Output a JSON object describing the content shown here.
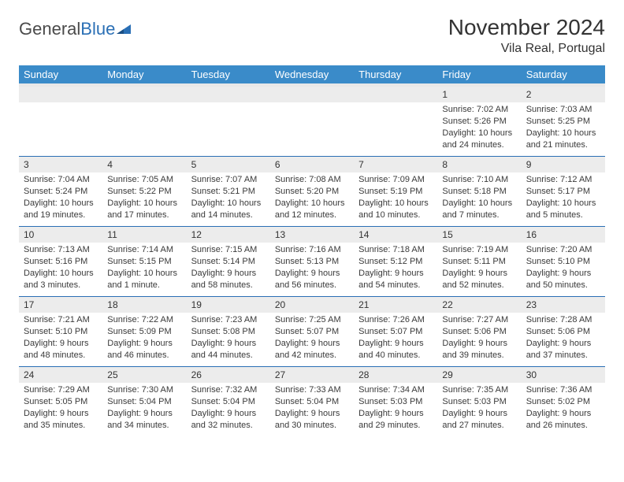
{
  "logo": {
    "word1": "General",
    "word2": "Blue"
  },
  "title": "November 2024",
  "location": "Vila Real, Portugal",
  "colors": {
    "header_bg": "#3a8bc9",
    "header_text": "#ffffff",
    "daybar_bg": "#ececec",
    "rule": "#2a6fb5",
    "logo_blue": "#2a6fb5",
    "text": "#3a3a3a"
  },
  "day_headers": [
    "Sunday",
    "Monday",
    "Tuesday",
    "Wednesday",
    "Thursday",
    "Friday",
    "Saturday"
  ],
  "weeks": [
    [
      null,
      null,
      null,
      null,
      null,
      {
        "n": "1",
        "sunrise": "7:02 AM",
        "sunset": "5:26 PM",
        "daylight": "10 hours and 24 minutes."
      },
      {
        "n": "2",
        "sunrise": "7:03 AM",
        "sunset": "5:25 PM",
        "daylight": "10 hours and 21 minutes."
      }
    ],
    [
      {
        "n": "3",
        "sunrise": "7:04 AM",
        "sunset": "5:24 PM",
        "daylight": "10 hours and 19 minutes."
      },
      {
        "n": "4",
        "sunrise": "7:05 AM",
        "sunset": "5:22 PM",
        "daylight": "10 hours and 17 minutes."
      },
      {
        "n": "5",
        "sunrise": "7:07 AM",
        "sunset": "5:21 PM",
        "daylight": "10 hours and 14 minutes."
      },
      {
        "n": "6",
        "sunrise": "7:08 AM",
        "sunset": "5:20 PM",
        "daylight": "10 hours and 12 minutes."
      },
      {
        "n": "7",
        "sunrise": "7:09 AM",
        "sunset": "5:19 PM",
        "daylight": "10 hours and 10 minutes."
      },
      {
        "n": "8",
        "sunrise": "7:10 AM",
        "sunset": "5:18 PM",
        "daylight": "10 hours and 7 minutes."
      },
      {
        "n": "9",
        "sunrise": "7:12 AM",
        "sunset": "5:17 PM",
        "daylight": "10 hours and 5 minutes."
      }
    ],
    [
      {
        "n": "10",
        "sunrise": "7:13 AM",
        "sunset": "5:16 PM",
        "daylight": "10 hours and 3 minutes."
      },
      {
        "n": "11",
        "sunrise": "7:14 AM",
        "sunset": "5:15 PM",
        "daylight": "10 hours and 1 minute."
      },
      {
        "n": "12",
        "sunrise": "7:15 AM",
        "sunset": "5:14 PM",
        "daylight": "9 hours and 58 minutes."
      },
      {
        "n": "13",
        "sunrise": "7:16 AM",
        "sunset": "5:13 PM",
        "daylight": "9 hours and 56 minutes."
      },
      {
        "n": "14",
        "sunrise": "7:18 AM",
        "sunset": "5:12 PM",
        "daylight": "9 hours and 54 minutes."
      },
      {
        "n": "15",
        "sunrise": "7:19 AM",
        "sunset": "5:11 PM",
        "daylight": "9 hours and 52 minutes."
      },
      {
        "n": "16",
        "sunrise": "7:20 AM",
        "sunset": "5:10 PM",
        "daylight": "9 hours and 50 minutes."
      }
    ],
    [
      {
        "n": "17",
        "sunrise": "7:21 AM",
        "sunset": "5:10 PM",
        "daylight": "9 hours and 48 minutes."
      },
      {
        "n": "18",
        "sunrise": "7:22 AM",
        "sunset": "5:09 PM",
        "daylight": "9 hours and 46 minutes."
      },
      {
        "n": "19",
        "sunrise": "7:23 AM",
        "sunset": "5:08 PM",
        "daylight": "9 hours and 44 minutes."
      },
      {
        "n": "20",
        "sunrise": "7:25 AM",
        "sunset": "5:07 PM",
        "daylight": "9 hours and 42 minutes."
      },
      {
        "n": "21",
        "sunrise": "7:26 AM",
        "sunset": "5:07 PM",
        "daylight": "9 hours and 40 minutes."
      },
      {
        "n": "22",
        "sunrise": "7:27 AM",
        "sunset": "5:06 PM",
        "daylight": "9 hours and 39 minutes."
      },
      {
        "n": "23",
        "sunrise": "7:28 AM",
        "sunset": "5:06 PM",
        "daylight": "9 hours and 37 minutes."
      }
    ],
    [
      {
        "n": "24",
        "sunrise": "7:29 AM",
        "sunset": "5:05 PM",
        "daylight": "9 hours and 35 minutes."
      },
      {
        "n": "25",
        "sunrise": "7:30 AM",
        "sunset": "5:04 PM",
        "daylight": "9 hours and 34 minutes."
      },
      {
        "n": "26",
        "sunrise": "7:32 AM",
        "sunset": "5:04 PM",
        "daylight": "9 hours and 32 minutes."
      },
      {
        "n": "27",
        "sunrise": "7:33 AM",
        "sunset": "5:04 PM",
        "daylight": "9 hours and 30 minutes."
      },
      {
        "n": "28",
        "sunrise": "7:34 AM",
        "sunset": "5:03 PM",
        "daylight": "9 hours and 29 minutes."
      },
      {
        "n": "29",
        "sunrise": "7:35 AM",
        "sunset": "5:03 PM",
        "daylight": "9 hours and 27 minutes."
      },
      {
        "n": "30",
        "sunrise": "7:36 AM",
        "sunset": "5:02 PM",
        "daylight": "9 hours and 26 minutes."
      }
    ]
  ],
  "labels": {
    "sunrise": "Sunrise:",
    "sunset": "Sunset:",
    "daylight": "Daylight:"
  }
}
